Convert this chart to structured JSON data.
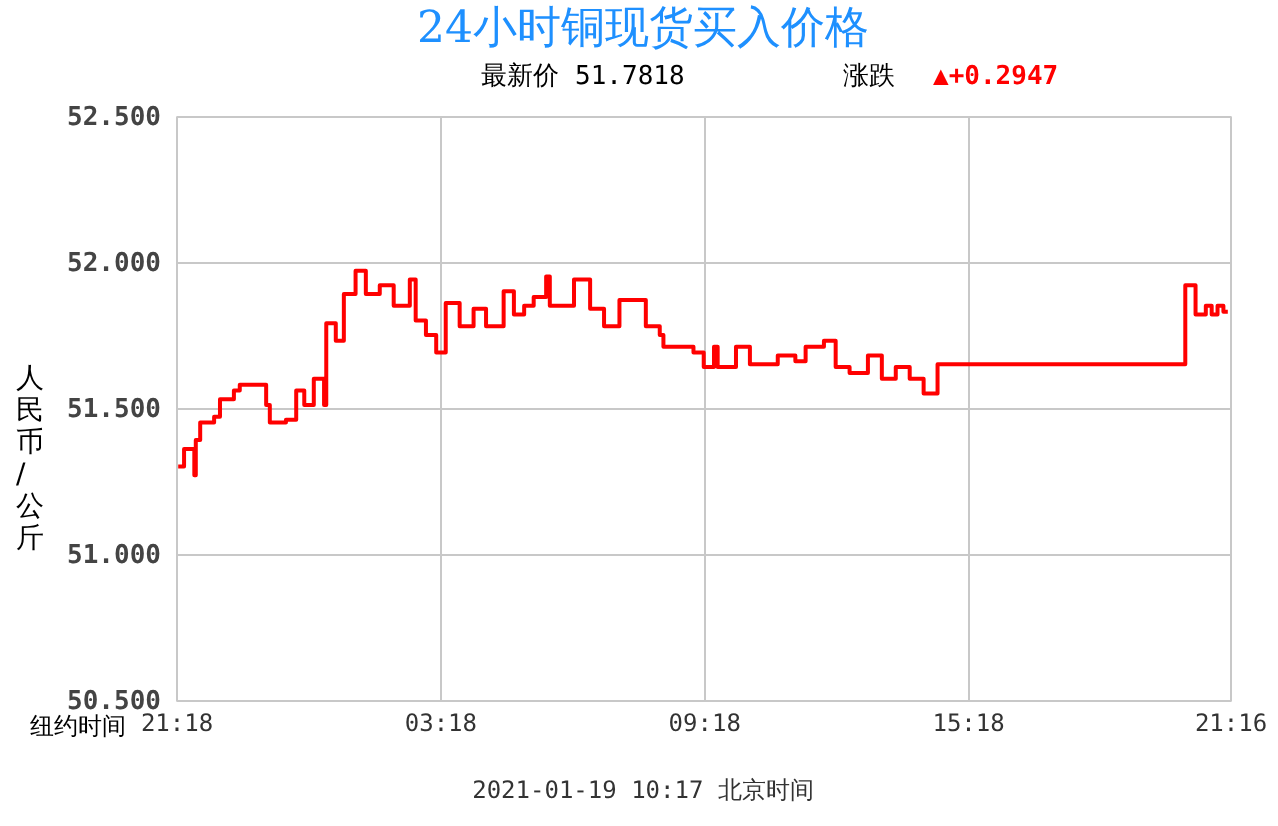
{
  "chart_data": {
    "type": "step",
    "title": "24小时铜现货买入价格",
    "subtitle": "最新价  51.7818",
    "xlabel": "纽约时间",
    "ylabel": "人民币/公斤",
    "annotations": [
      "涨跌",
      "▲+0.2947",
      "2021-01-19 10:17  北京时间"
    ],
    "xlim": [
      "2021-01-17T21:18",
      "2021-01-18T21:16"
    ],
    "xticks": [
      {
        "value": "2021-01-17T21:18",
        "label": "21:18"
      },
      {
        "value": "2021-01-18T03:18",
        "label": "03:18"
      },
      {
        "value": "2021-01-18T09:18",
        "label": "09:18"
      },
      {
        "value": "2021-01-18T15:18",
        "label": "15:18"
      },
      {
        "value": "2021-01-18T21:16",
        "label": "21:16"
      }
    ],
    "ylim": [
      50.5,
      52.5
    ],
    "yticks": [
      {
        "value": 50.5,
        "label": "50.500"
      },
      {
        "value": 51,
        "label": "51.000"
      },
      {
        "value": 51.5,
        "label": "51.500"
      },
      {
        "value": 52,
        "label": "52.000"
      },
      {
        "value": 52.5,
        "label": "52.500"
      }
    ],
    "grid": true,
    "marker": "none",
    "line_style": "solid",
    "series": [
      {
        "color": "#ff0000",
        "x": [
          "2021-01-17T21:21",
          "2021-01-17T21:29",
          "2021-01-17T21:43",
          "2021-01-17T21:45",
          "2021-01-17T21:51",
          "2021-01-17T22:10",
          "2021-01-17T22:18",
          "2021-01-17T22:37",
          "2021-01-17T22:45",
          "2021-01-17T23:13",
          "2021-01-17T23:21",
          "2021-01-17T23:26",
          "2021-01-17T23:48",
          "2021-01-18T00:02",
          "2021-01-18T00:13",
          "2021-01-18T00:26",
          "2021-01-18T00:40",
          "2021-01-18T00:43",
          "2021-01-18T00:56",
          "2021-01-18T01:07",
          "2021-01-18T01:23",
          "2021-01-18T01:37",
          "2021-01-18T01:56",
          "2021-01-18T02:15",
          "2021-01-18T02:37",
          "2021-01-18T02:45",
          "2021-01-18T02:59",
          "2021-01-18T03:13",
          "2021-01-18T03:26",
          "2021-01-18T03:45",
          "2021-01-18T04:04",
          "2021-01-18T04:21",
          "2021-01-18T04:45",
          "2021-01-18T04:59",
          "2021-01-18T05:13",
          "2021-01-18T05:26",
          "2021-01-18T05:43",
          "2021-01-18T05:48",
          "2021-01-18T06:21",
          "2021-01-18T06:43",
          "2021-01-18T07:02",
          "2021-01-18T07:23",
          "2021-01-18T07:59",
          "2021-01-18T08:18",
          "2021-01-18T08:23",
          "2021-01-18T09:04",
          "2021-01-18T09:18",
          "2021-01-18T09:32",
          "2021-01-18T09:37",
          "2021-01-18T10:02",
          "2021-01-18T10:21",
          "2021-01-18T10:59",
          "2021-01-18T11:23",
          "2021-01-18T11:37",
          "2021-01-18T12:02",
          "2021-01-18T12:18",
          "2021-01-18T12:37",
          "2021-01-18T13:02",
          "2021-01-18T13:21",
          "2021-01-18T13:40",
          "2021-01-18T13:59",
          "2021-01-18T14:18",
          "2021-01-18T14:37",
          "2021-01-18T20:15",
          "2021-01-18T20:29",
          "2021-01-18T20:43",
          "2021-01-18T20:51",
          "2021-01-18T20:59",
          "2021-01-18T21:07",
          "2021-01-18T21:13"
        ],
        "values": [
          51.3,
          51.36,
          51.27,
          51.39,
          51.45,
          51.47,
          51.53,
          51.56,
          51.58,
          51.58,
          51.51,
          51.45,
          51.46,
          51.56,
          51.51,
          51.6,
          51.51,
          51.79,
          51.73,
          51.89,
          51.97,
          51.89,
          51.92,
          51.85,
          51.94,
          51.8,
          51.75,
          51.69,
          51.86,
          51.78,
          51.84,
          51.78,
          51.9,
          51.82,
          51.85,
          51.88,
          51.95,
          51.85,
          51.94,
          51.84,
          51.78,
          51.87,
          51.78,
          51.75,
          51.71,
          51.69,
          51.64,
          51.71,
          51.64,
          51.71,
          51.65,
          51.68,
          51.66,
          51.71,
          51.73,
          51.64,
          51.62,
          51.68,
          51.6,
          51.64,
          51.6,
          51.55,
          51.65,
          51.92,
          51.82,
          51.85,
          51.82,
          51.85,
          51.83,
          51.83
        ]
      }
    ]
  }
}
